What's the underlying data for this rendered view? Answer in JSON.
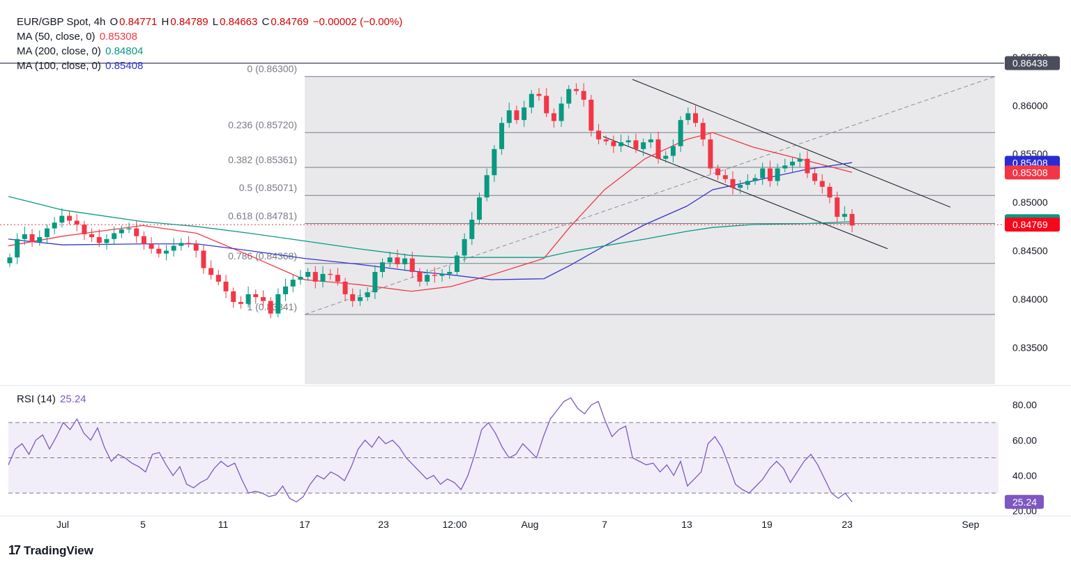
{
  "header": {
    "symbol": "EUR/GBP Spot, 4h",
    "o_label": "O",
    "o_value": "0.84771",
    "h_label": "H",
    "h_value": "0.84789",
    "l_label": "L",
    "l_value": "0.84663",
    "c_label": "C",
    "c_value": "0.84769",
    "change": "−0.00002 (−0.00%)"
  },
  "indicators": [
    {
      "label": "MA (50, close, 0)",
      "value": "0.85308",
      "color": "#f23645"
    },
    {
      "label": "MA (200, close, 0)",
      "value": "0.84804",
      "color": "#089981"
    },
    {
      "label": "MA (100, close, 0)",
      "value": "0.85408",
      "color": "#3030d0"
    }
  ],
  "rsi": {
    "label": "RSI (14)",
    "value": "25.24",
    "color": "#7e57c2"
  },
  "brand": "TradingView",
  "chart_data": {
    "type": "line",
    "title": "EUR/GBP Spot, 4h",
    "ylim": [
      0.8312,
      0.8655
    ],
    "y_ticks": [
      "0.86500",
      "0.86000",
      "0.85500",
      "0.85000",
      "0.84500",
      "0.84000",
      "0.83500"
    ],
    "x_tick_labels": [
      "Jul",
      "5",
      "11",
      "17",
      "23",
      "12:00",
      "Aug",
      "7",
      "13",
      "19",
      "23",
      "Sep"
    ],
    "series": [
      {
        "name": "MA (50, close, 0)",
        "color": "#f23645",
        "x": [
          "Jun 26",
          "Jul 1",
          "Jul 5",
          "Jul 9",
          "Jul 13",
          "Jul 17",
          "Jul 21",
          "Jul 25",
          "Jul 28",
          "Jul 31",
          "Aug 3",
          "Aug 5",
          "Aug 7",
          "Aug 10",
          "Aug 13",
          "Aug 15",
          "Aug 18",
          "Aug 21",
          "Aug 23"
        ],
        "values": [
          0.8455,
          0.8465,
          0.8476,
          0.8468,
          0.8445,
          0.842,
          0.8415,
          0.8408,
          0.8413,
          0.8425,
          0.8442,
          0.8475,
          0.8513,
          0.8545,
          0.8565,
          0.8572,
          0.8557,
          0.8543,
          0.8531
        ]
      },
      {
        "name": "MA (100, close, 0)",
        "color": "#3535c8",
        "x": [
          "Jun 26",
          "Jul 1",
          "Jul 5",
          "Jul 9",
          "Jul 13",
          "Jul 17",
          "Jul 21",
          "Jul 25",
          "Jul 28",
          "Jul 31",
          "Aug 3",
          "Aug 5",
          "Aug 7",
          "Aug 10",
          "Aug 13",
          "Aug 15",
          "Aug 18",
          "Aug 21",
          "Aug 23"
        ],
        "values": [
          0.8462,
          0.8456,
          0.8457,
          0.8457,
          0.845,
          0.8442,
          0.8436,
          0.8429,
          0.8425,
          0.842,
          0.8421,
          0.8435,
          0.8455,
          0.8477,
          0.8496,
          0.8513,
          0.8522,
          0.8534,
          0.8541
        ]
      },
      {
        "name": "MA (200, close, 0)",
        "color": "#089981",
        "x": [
          "Jun 26",
          "Jul 1",
          "Jul 5",
          "Jul 9",
          "Jul 13",
          "Jul 17",
          "Jul 21",
          "Jul 25",
          "Jul 28",
          "Jul 31",
          "Aug 3",
          "Aug 5",
          "Aug 7",
          "Aug 10",
          "Aug 13",
          "Aug 15",
          "Aug 18",
          "Aug 21",
          "Aug 23"
        ],
        "values": [
          0.8506,
          0.8492,
          0.848,
          0.8475,
          0.8468,
          0.846,
          0.8452,
          0.8445,
          0.8443,
          0.8443,
          0.8443,
          0.8449,
          0.8455,
          0.8462,
          0.847,
          0.8474,
          0.8477,
          0.8478,
          0.848
        ]
      }
    ],
    "candles_close_path": [
      0.8443,
      0.8462,
      0.8467,
      0.8459,
      0.8464,
      0.8473,
      0.8479,
      0.8486,
      0.8481,
      0.8477,
      0.8467,
      0.8464,
      0.8458,
      0.8462,
      0.8468,
      0.8472,
      0.8473,
      0.8465,
      0.8457,
      0.8452,
      0.8447,
      0.845,
      0.8455,
      0.8458,
      0.8457,
      0.845,
      0.8432,
      0.8425,
      0.8418,
      0.8408,
      0.8397,
      0.8395,
      0.8405,
      0.8402,
      0.8398,
      0.8385,
      0.8405,
      0.8413,
      0.842,
      0.8423,
      0.8428,
      0.8418,
      0.8426,
      0.8425,
      0.8418,
      0.8405,
      0.8398,
      0.8402,
      0.8407,
      0.8428,
      0.8438,
      0.8443,
      0.8436,
      0.8442,
      0.8428,
      0.8418,
      0.8425,
      0.8424,
      0.8426,
      0.8428,
      0.8445,
      0.8462,
      0.8482,
      0.8505,
      0.8528,
      0.8555,
      0.8582,
      0.8595,
      0.8585,
      0.8598,
      0.8612,
      0.861,
      0.8592,
      0.8584,
      0.8602,
      0.8617,
      0.8615,
      0.8606,
      0.8574,
      0.8565,
      0.8563,
      0.8558,
      0.8562,
      0.8564,
      0.8555,
      0.8562,
      0.8565,
      0.8545,
      0.8548,
      0.8558,
      0.8585,
      0.8592,
      0.8582,
      0.8565,
      0.8535,
      0.8528,
      0.8524,
      0.8515,
      0.8518,
      0.8522,
      0.8525,
      0.8535,
      0.8522,
      0.8535,
      0.8538,
      0.8542,
      0.8545,
      0.853,
      0.8522,
      0.8516,
      0.8505,
      0.8485,
      0.8488,
      0.8476
    ],
    "fibonacci": [
      {
        "label": "0 (0.86300)",
        "value": 0.863
      },
      {
        "label": "0.236 (0.85720)",
        "value": 0.8572
      },
      {
        "label": "0.382 (0.85361)",
        "value": 0.85361
      },
      {
        "label": "0.5 (0.85071)",
        "value": 0.85071
      },
      {
        "label": "0.618 (0.84781)",
        "value": 0.84781
      },
      {
        "label": "0.786 (0.84368)",
        "value": 0.84368
      },
      {
        "label": "1 (0.83841)",
        "value": 0.83841
      }
    ],
    "price_tags": [
      {
        "text": "0.86438",
        "value": 0.86438,
        "color": "#4a4e5c"
      },
      {
        "text": "0.85408",
        "value": 0.85408,
        "color": "#2b2bd6"
      },
      {
        "text": "0.85308",
        "value": 0.85308,
        "color": "#f23645"
      },
      {
        "text": "0.84804",
        "value": 0.84804,
        "color": "#089981"
      },
      {
        "text": "0.84769",
        "value": 0.84769,
        "color": "#f7071c"
      }
    ],
    "rsi_series": {
      "name": "RSI (14)",
      "ylim": [
        17,
        87
      ],
      "y_ticks": [
        "80.00",
        "60.00",
        "40.00",
        "20.00"
      ],
      "bands": [
        70,
        50,
        30
      ],
      "values": [
        46,
        55,
        58,
        52,
        60,
        63,
        55,
        62,
        70,
        66,
        72,
        64,
        60,
        67,
        56,
        48,
        52,
        50,
        47,
        45,
        42,
        52,
        53,
        46,
        40,
        45,
        35,
        33,
        36,
        38,
        44,
        48,
        45,
        47,
        38,
        30,
        31,
        30,
        28,
        29,
        34,
        27,
        25,
        28,
        35,
        40,
        38,
        42,
        40,
        37,
        45,
        55,
        60,
        56,
        62,
        58,
        60,
        56,
        50,
        46,
        42,
        38,
        40,
        35,
        38,
        36,
        32,
        40,
        52,
        66,
        70,
        64,
        56,
        50,
        52,
        58,
        54,
        50,
        62,
        72,
        77,
        82,
        84,
        78,
        75,
        80,
        82,
        71,
        62,
        66,
        68,
        50,
        48,
        46,
        47,
        42,
        46,
        40,
        48,
        34,
        38,
        42,
        58,
        62,
        56,
        46,
        35,
        32,
        30,
        34,
        38,
        44,
        48,
        44,
        36,
        42,
        48,
        52,
        46,
        38,
        30,
        27,
        30,
        25
      ]
    },
    "grid": false,
    "legend_position": "top-left"
  }
}
